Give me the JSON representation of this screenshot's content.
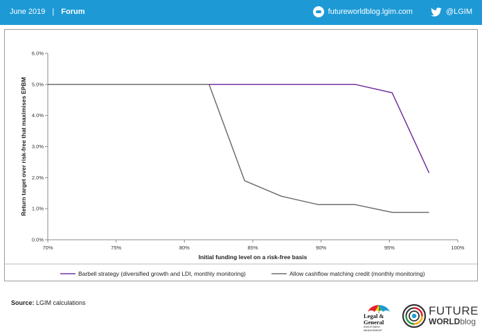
{
  "header": {
    "date": "June 2019",
    "separator": "|",
    "section": "Forum",
    "blog_url": "futureworldblog.lgim.com",
    "twitter_handle": "@LGIM",
    "bg_color": "#1d9ad6"
  },
  "icons": {
    "blog": "blog-logo-icon",
    "twitter": "twitter-bird-icon"
  },
  "chart_data": {
    "type": "line",
    "title": "",
    "xlabel": "Initial funding level on a risk-free basis",
    "ylabel": "Return target over risk-free that maximises EPBM",
    "xlim": [
      70,
      100
    ],
    "ylim": [
      0,
      6
    ],
    "x_ticks": [
      "70%",
      "75%",
      "80%",
      "85%",
      "90%",
      "95%",
      "100%"
    ],
    "y_ticks": [
      "0.0%",
      "1.0%",
      "2.0%",
      "3.0%",
      "4.0%",
      "5.0%",
      "6.0%"
    ],
    "grid": false,
    "legend_position": "bottom",
    "series": [
      {
        "name": "Barbell strategy (diversified growth and LDI, monthly monitoring)",
        "color": "#7030a0",
        "x": [
          70,
          92.5,
          95.2,
          97.9
        ],
        "y": [
          5.0,
          5.0,
          4.73,
          2.15
        ]
      },
      {
        "name": "Allow cashflow matching credit (monthly monitoring)",
        "color": "#6d6d6d",
        "x": [
          70,
          81.8,
          84.4,
          87.1,
          89.8,
          92.5,
          95.2,
          97.9
        ],
        "y": [
          5.0,
          5.0,
          1.9,
          1.4,
          1.13,
          1.13,
          0.88,
          0.88
        ]
      }
    ]
  },
  "footer": {
    "source_label": "Source:",
    "source_text": "LGIM calculations",
    "lg_logo_line1": "Legal &",
    "lg_logo_line2": "General",
    "lg_logo_sub": "INVESTMENT MANAGEMENT",
    "fw_logo_line1": "FUTURE",
    "fw_logo_line2": "WORLD",
    "fw_logo_line2b": "blog",
    "lg_colors": [
      "#e4202e",
      "#ffcc00",
      "#2e9e46",
      "#1d9ad6"
    ],
    "fw_colors": [
      "#e4202e",
      "#f7a800",
      "#2e9e46",
      "#1d9ad6"
    ]
  }
}
